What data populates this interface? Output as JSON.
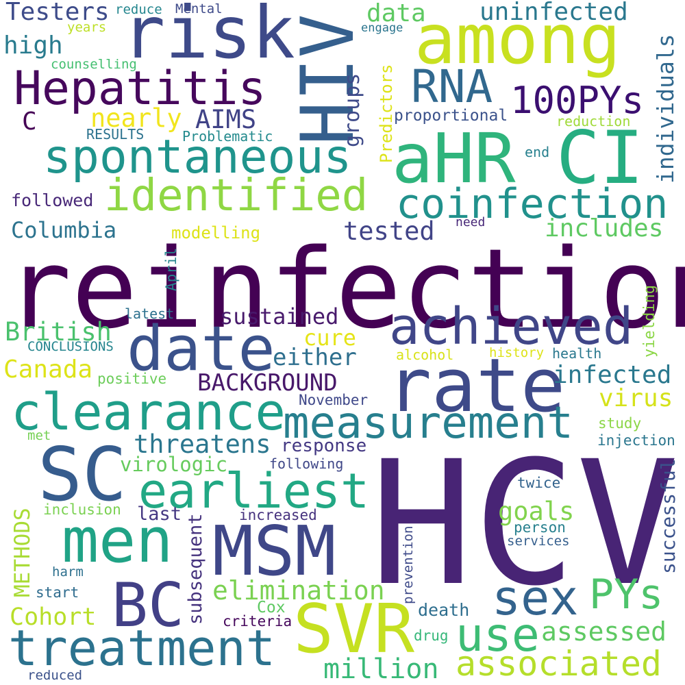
{
  "words": [
    {
      "text": "reinfection",
      "color": "#440154"
    },
    {
      "text": "HCV",
      "color": "#482475"
    },
    {
      "text": "rate",
      "color": "#3e4a89"
    },
    {
      "text": "risk",
      "color": "#3e4a89"
    },
    {
      "text": "among",
      "color": "#c8e020"
    },
    {
      "text": "HIV",
      "color": "#355f8d"
    },
    {
      "text": "aHR",
      "color": "#2fb47c"
    },
    {
      "text": "CI",
      "color": "#26ad81"
    },
    {
      "text": "Hepatitis",
      "color": "#46085c"
    },
    {
      "text": "RNA",
      "color": "#31688e"
    },
    {
      "text": "100PYs",
      "color": "#3b0f70"
    },
    {
      "text": "spontaneous",
      "color": "#1f948c"
    },
    {
      "text": "identified",
      "color": "#8fd744"
    },
    {
      "text": "coinfection",
      "color": "#21918c"
    },
    {
      "text": "date",
      "color": "#3b528b"
    },
    {
      "text": "achieved",
      "color": "#404688"
    },
    {
      "text": "clearance",
      "color": "#1f9e89"
    },
    {
      "text": "measurement",
      "color": "#277f8e"
    },
    {
      "text": "SC",
      "color": "#365c8d"
    },
    {
      "text": "earliest",
      "color": "#22a884"
    },
    {
      "text": "men",
      "color": "#20a386"
    },
    {
      "text": "MSM",
      "color": "#3f4788"
    },
    {
      "text": "BC",
      "color": "#424086"
    },
    {
      "text": "SVR",
      "color": "#c5e021"
    },
    {
      "text": "treatment",
      "color": "#2c728e"
    },
    {
      "text": "sex",
      "color": "#33638d"
    },
    {
      "text": "PYs",
      "color": "#4ec36b"
    },
    {
      "text": "use",
      "color": "#3dbc74"
    },
    {
      "text": "associated",
      "color": "#b5de2b"
    },
    {
      "text": "assessed",
      "color": "#5ec962"
    },
    {
      "text": "million",
      "color": "#38b977"
    },
    {
      "text": "elimination",
      "color": "#7ad151"
    },
    {
      "text": "threatens",
      "color": "#2a768e"
    },
    {
      "text": "virologic",
      "color": "#66cb5d"
    },
    {
      "text": "goals",
      "color": "#81d34d"
    },
    {
      "text": "infected",
      "color": "#2a788e"
    },
    {
      "text": "virus",
      "color": "#d5e21a"
    },
    {
      "text": "sustained",
      "color": "#481a6c"
    },
    {
      "text": "cure",
      "color": "#e5e419"
    },
    {
      "text": "either",
      "color": "#2e6f8e"
    },
    {
      "text": "BACKGROUND",
      "color": "#48186a"
    },
    {
      "text": "British",
      "color": "#4ac16d"
    },
    {
      "text": "Canada",
      "color": "#dde318"
    },
    {
      "text": "Columbia",
      "color": "#2c738e"
    },
    {
      "text": "tested",
      "color": "#414487"
    },
    {
      "text": "includes",
      "color": "#5ec962"
    },
    {
      "text": "followed",
      "color": "#482878"
    },
    {
      "text": "Testers",
      "color": "#3e4c8a"
    },
    {
      "text": "high",
      "color": "#297b8e"
    },
    {
      "text": "data",
      "color": "#5ec962"
    },
    {
      "text": "uninfected",
      "color": "#2a788e"
    },
    {
      "text": "nearly",
      "color": "#f1e51d"
    },
    {
      "text": "AIMS",
      "color": "#404387"
    },
    {
      "text": "C",
      "color": "#440154"
    },
    {
      "text": "RESULTS",
      "color": "#2c728e"
    },
    {
      "text": "Problematic",
      "color": "#238a8d"
    },
    {
      "text": "proportional",
      "color": "#3b528b"
    },
    {
      "text": "reduction",
      "color": "#a0da39"
    },
    {
      "text": "end",
      "color": "#27808e"
    },
    {
      "text": "need",
      "color": "#482878"
    },
    {
      "text": "modelling",
      "color": "#dde318"
    },
    {
      "text": "latest",
      "color": "#2d718e"
    },
    {
      "text": "CONCLUSIONS",
      "color": "#25858e"
    },
    {
      "text": "positive",
      "color": "#6ccd5a"
    },
    {
      "text": "alcohol",
      "color": "#d8e219"
    },
    {
      "text": "history",
      "color": "#dde318"
    },
    {
      "text": "health",
      "color": "#2a788e"
    },
    {
      "text": "November",
      "color": "#3f4889"
    },
    {
      "text": "met",
      "color": "#75d054"
    },
    {
      "text": "response",
      "color": "#443983"
    },
    {
      "text": "study",
      "color": "#8bd646"
    },
    {
      "text": "injection",
      "color": "#2a768e"
    },
    {
      "text": "following",
      "color": "#3f4788"
    },
    {
      "text": "twice",
      "color": "#33638d"
    },
    {
      "text": "inclusion",
      "color": "#7ad151"
    },
    {
      "text": "last",
      "color": "#453882"
    },
    {
      "text": "increased",
      "color": "#46327e"
    },
    {
      "text": "person",
      "color": "#27808e"
    },
    {
      "text": "services",
      "color": "#355f8d"
    },
    {
      "text": "harm",
      "color": "#2d708e"
    },
    {
      "text": "start",
      "color": "#2f6c8e"
    },
    {
      "text": "Cox",
      "color": "#5ec962"
    },
    {
      "text": "criteria",
      "color": "#46085c"
    },
    {
      "text": "Cohort",
      "color": "#b8de29"
    },
    {
      "text": "death",
      "color": "#2e6e8e"
    },
    {
      "text": "drug",
      "color": "#35b779"
    },
    {
      "text": "reduced",
      "color": "#3b528b"
    },
    {
      "text": "counselling",
      "color": "#44bf70"
    },
    {
      "text": "years",
      "color": "#bddf26"
    },
    {
      "text": "reduce",
      "color": "#24868e"
    },
    {
      "text": "Mental",
      "color": "#3e4a89"
    },
    {
      "text": "engage",
      "color": "#2b758e"
    },
    {
      "text": "groups",
      "color": "#3e4a89"
    },
    {
      "text": "Predictors",
      "color": "#dde318"
    },
    {
      "text": "individuals",
      "color": "#31688e"
    },
    {
      "text": "April",
      "color": "#25858e"
    },
    {
      "text": "yielding",
      "color": "#8bd646"
    },
    {
      "text": "METHODS",
      "color": "#a8db34"
    },
    {
      "text": "subsequent",
      "color": "#46337e"
    },
    {
      "text": "prevention",
      "color": "#3e4a89"
    },
    {
      "text": "successful",
      "color": "#3b528b"
    }
  ]
}
